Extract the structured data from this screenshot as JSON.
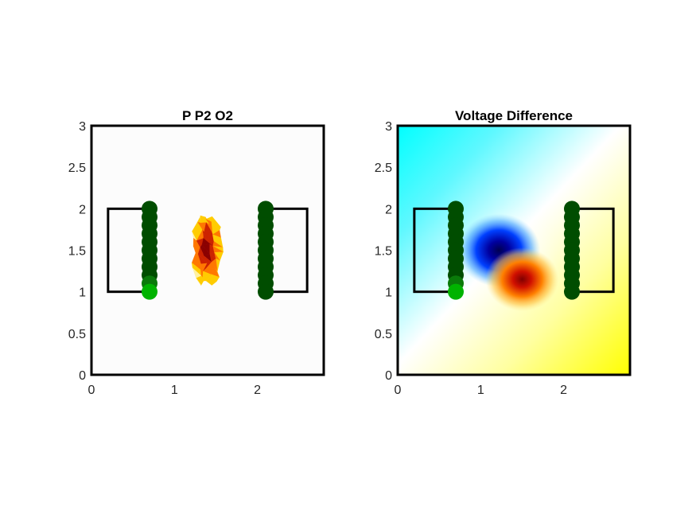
{
  "chart_data": [
    {
      "type": "scatter",
      "title": "P P2 O2",
      "xlim": [
        0,
        2.8
      ],
      "ylim": [
        0,
        3
      ],
      "x_ticks": [
        "0",
        "1",
        "2"
      ],
      "y_ticks": [
        "0",
        "0.5",
        "1",
        "1.5",
        "2",
        "2.5",
        "3"
      ],
      "grid": false,
      "electrode_boxes": [
        {
          "x": [
            0.2,
            0.7
          ],
          "y": [
            1,
            2
          ]
        },
        {
          "x": [
            2.1,
            2.6
          ],
          "y": [
            1,
            2
          ]
        }
      ],
      "electrode_series": [
        {
          "x": 0.7,
          "y": [
            2.0,
            1.9,
            1.8,
            1.7,
            1.6,
            1.5,
            1.4,
            1.3,
            1.2,
            1.1,
            1.0
          ],
          "color": "#004d00",
          "highlight_y": [
            1.1,
            1.0
          ],
          "highlight_colors": [
            "#0a7a0a",
            "#00b300"
          ]
        },
        {
          "x": 2.1,
          "y": [
            2.0,
            1.9,
            1.8,
            1.7,
            1.6,
            1.5,
            1.4,
            1.3,
            1.2,
            1.1,
            1.0
          ],
          "color": "#004d00"
        }
      ],
      "source_blob": {
        "x_range": [
          1.22,
          1.57
        ],
        "y_range": [
          1.1,
          1.9
        ],
        "colors": [
          "#4d0000",
          "#8b0000",
          "#cc2200",
          "#ff7700",
          "#ffcc00",
          "#fff2a0"
        ]
      }
    },
    {
      "type": "heatmap",
      "title": "Voltage Difference",
      "xlim": [
        0,
        2.8
      ],
      "ylim": [
        0,
        3
      ],
      "x_ticks": [
        "0",
        "1",
        "2"
      ],
      "y_ticks": [
        "0",
        "0.5",
        "1",
        "1.5",
        "2",
        "2.5",
        "3"
      ],
      "grid": false,
      "colormap": [
        "#00ffff",
        "#ffffff",
        "#ffff00"
      ],
      "extremes": {
        "negative": {
          "x": 1.22,
          "y": 1.5,
          "color": "#000066"
        },
        "positive": {
          "x": 1.5,
          "y": 1.15,
          "color": "#8b0000"
        }
      },
      "electrode_boxes": [
        {
          "x": [
            0.2,
            0.7
          ],
          "y": [
            1,
            2
          ]
        },
        {
          "x": [
            2.1,
            2.6
          ],
          "y": [
            1,
            2
          ]
        }
      ],
      "electrode_series": [
        {
          "x": 0.7,
          "y": [
            2.0,
            1.9,
            1.8,
            1.7,
            1.6,
            1.5,
            1.4,
            1.3,
            1.2,
            1.1,
            1.0
          ],
          "color": "#004d00",
          "highlight_y": [
            1.1,
            1.0
          ],
          "highlight_colors": [
            "#0a7a0a",
            "#00b300"
          ]
        },
        {
          "x": 2.1,
          "y": [
            2.0,
            1.9,
            1.8,
            1.7,
            1.6,
            1.5,
            1.4,
            1.3,
            1.2,
            1.1,
            1.0
          ],
          "color": "#004d00"
        }
      ]
    }
  ]
}
